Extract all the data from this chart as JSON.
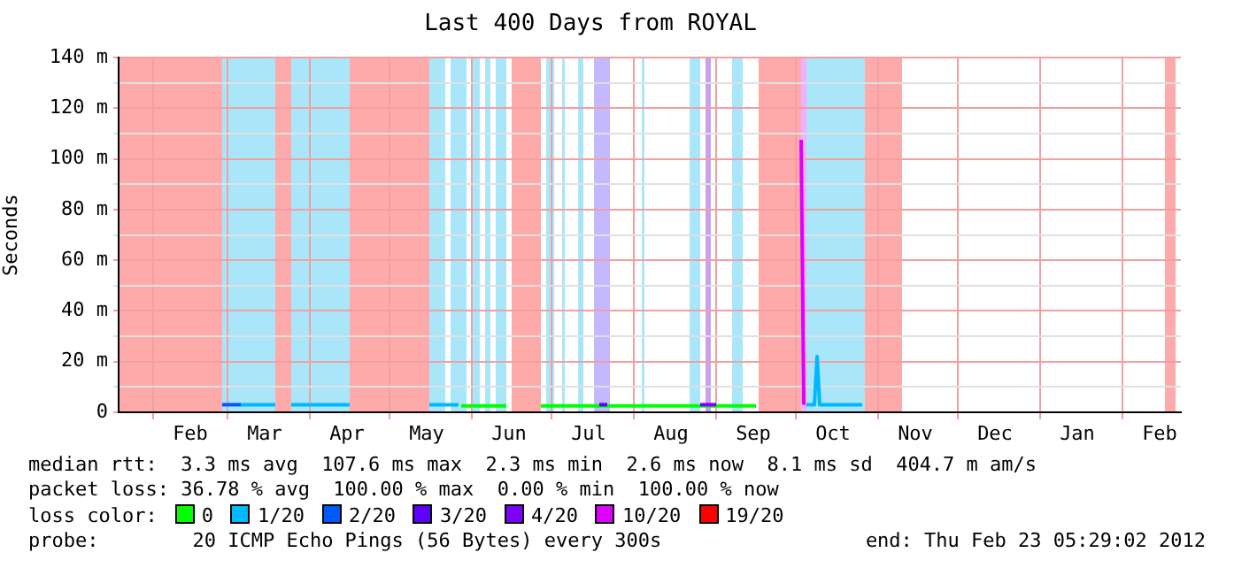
{
  "chart_data": {
    "type": "line",
    "title": "Last 400 Days from ROYAL",
    "ylabel": "Seconds",
    "legend_title": "loss color:",
    "legend": "bottom",
    "grid": true,
    "marker": "none",
    "line_style": "solid",
    "xlim": [
      "2011-01-19",
      "2012-02-23"
    ],
    "xticks": [
      {
        "value": "2011-02-01",
        "label": null
      },
      {
        "value": "2011-02-15",
        "label": "Feb"
      },
      {
        "value": "2011-03-01",
        "label": null
      },
      {
        "value": "2011-03-15",
        "label": "Mar"
      },
      {
        "value": "2011-04-01",
        "label": null
      },
      {
        "value": "2011-04-15",
        "label": "Apr"
      },
      {
        "value": "2011-05-01",
        "label": null
      },
      {
        "value": "2011-05-15",
        "label": "May"
      },
      {
        "value": "2011-06-01",
        "label": null
      },
      {
        "value": "2011-06-15",
        "label": "Jun"
      },
      {
        "value": "2011-07-01",
        "label": null
      },
      {
        "value": "2011-07-15",
        "label": "Jul"
      },
      {
        "value": "2011-08-01",
        "label": null
      },
      {
        "value": "2011-08-15",
        "label": "Aug"
      },
      {
        "value": "2011-09-01",
        "label": null
      },
      {
        "value": "2011-09-15",
        "label": "Sep"
      },
      {
        "value": "2011-10-01",
        "label": null
      },
      {
        "value": "2011-10-15",
        "label": "Oct"
      },
      {
        "value": "2011-11-01",
        "label": null
      },
      {
        "value": "2011-11-15",
        "label": "Nov"
      },
      {
        "value": "2011-12-01",
        "label": null
      },
      {
        "value": "2011-12-15",
        "label": "Dec"
      },
      {
        "value": "2012-01-01",
        "label": null
      },
      {
        "value": "2012-01-15",
        "label": "Jan"
      },
      {
        "value": "2012-02-01",
        "label": null
      },
      {
        "value": "2012-02-15",
        "label": "Feb"
      }
    ],
    "ylim": [
      0,
      140
    ],
    "yticks": [
      {
        "value": 0,
        "label": "0"
      },
      {
        "value": 10,
        "label": null
      },
      {
        "value": 20,
        "label": "20 m"
      },
      {
        "value": 30,
        "label": null
      },
      {
        "value": 40,
        "label": "40 m"
      },
      {
        "value": 50,
        "label": null
      },
      {
        "value": 60,
        "label": "60 m"
      },
      {
        "value": 70,
        "label": null
      },
      {
        "value": 80,
        "label": "80 m"
      },
      {
        "value": 90,
        "label": null
      },
      {
        "value": 100,
        "label": "100 m"
      },
      {
        "value": 110,
        "label": null
      },
      {
        "value": 120,
        "label": "120 m"
      },
      {
        "value": 130,
        "label": null
      },
      {
        "value": 140,
        "label": "140 m"
      }
    ],
    "series": [
      {
        "name": "0",
        "color": "#00ff00",
        "x": [
          "2011-05-28",
          "2011-06-14",
          "2011-06-15",
          "2011-06-27",
          "2011-07-15",
          "2011-08-10",
          "2011-09-16"
        ],
        "values": [
          2.5,
          2.5,
          null,
          2.5,
          2.5,
          2.5,
          2.5
        ]
      },
      {
        "name": "1/20",
        "color": "#00b8ff",
        "x": [
          "2011-03-06",
          "2011-03-19",
          "2011-03-20",
          "2011-03-25",
          "2011-04-16",
          "2011-04-17",
          "2011-05-16",
          "2011-05-27",
          "2011-05-28",
          "2011-10-05",
          "2011-10-08",
          "2011-10-09",
          "2011-10-10",
          "2011-10-26"
        ],
        "values": [
          3,
          3,
          null,
          3,
          3,
          null,
          3,
          3,
          null,
          3,
          3,
          22,
          3,
          3
        ]
      },
      {
        "name": "2/20",
        "color": "#0059ff",
        "x": [
          "2011-02-27",
          "2011-03-06"
        ],
        "values": [
          3,
          3
        ]
      },
      {
        "name": "3/20",
        "color": "#5e00ff",
        "x": [
          "2011-07-19",
          "2011-07-22"
        ],
        "values": [
          3,
          3
        ]
      },
      {
        "name": "4/20",
        "color": "#7e00ff",
        "x": [
          "2011-08-26",
          "2011-09-01"
        ],
        "values": [
          3,
          3
        ]
      },
      {
        "name": "10/20",
        "color": "#dd00ff",
        "x": [
          "2011-10-03",
          "2011-10-04"
        ],
        "values": [
          107.6,
          3
        ]
      },
      {
        "name": "19/20",
        "color": "#ff0000"
      }
    ],
    "bands": [
      {
        "axis": "x",
        "from": "2011-01-19",
        "to": "2011-02-27",
        "color": "#ffaaaa"
      },
      {
        "axis": "x",
        "from": "2011-02-27",
        "to": "2011-03-19",
        "color": "#aae6fa"
      },
      {
        "axis": "x",
        "from": "2011-03-19",
        "to": "2011-03-25",
        "color": "#ffaaaa"
      },
      {
        "axis": "x",
        "from": "2011-03-25",
        "to": "2011-04-16",
        "color": "#aae6fa"
      },
      {
        "axis": "x",
        "from": "2011-04-16",
        "to": "2011-05-16",
        "color": "#ffaaaa"
      },
      {
        "axis": "x",
        "from": "2011-05-16",
        "to": "2011-05-22",
        "color": "#aae6fa"
      },
      {
        "axis": "x",
        "from": "2011-05-24",
        "to": "2011-05-30",
        "color": "#aae6fa"
      },
      {
        "axis": "x",
        "from": "2011-06-01",
        "to": "2011-06-04",
        "color": "#aae6fa"
      },
      {
        "axis": "x",
        "from": "2011-06-06",
        "to": "2011-06-08",
        "color": "#aae6fa"
      },
      {
        "axis": "x",
        "from": "2011-06-10",
        "to": "2011-06-14",
        "color": "#aae6fa"
      },
      {
        "axis": "x",
        "from": "2011-06-16",
        "to": "2011-06-27",
        "color": "#ffaaaa"
      },
      {
        "axis": "x",
        "from": "2011-06-29",
        "to": "2011-07-02",
        "color": "#aae6fa"
      },
      {
        "axis": "x",
        "from": "2011-07-05",
        "to": "2011-07-06",
        "color": "#aae6fa"
      },
      {
        "axis": "x",
        "from": "2011-07-11",
        "to": "2011-07-13",
        "color": "#aae6fa"
      },
      {
        "axis": "x",
        "from": "2011-07-17",
        "to": "2011-07-23",
        "color": "#c4b8ff"
      },
      {
        "axis": "x",
        "from": "2011-08-04",
        "to": "2011-08-05",
        "color": "#aae6fa"
      },
      {
        "axis": "x",
        "from": "2011-08-22",
        "to": "2011-08-26",
        "color": "#aae6fa"
      },
      {
        "axis": "x",
        "from": "2011-08-28",
        "to": "2011-08-30",
        "color": "#c8a0f0"
      },
      {
        "axis": "x",
        "from": "2011-09-07",
        "to": "2011-09-11",
        "color": "#aae6fa"
      },
      {
        "axis": "x",
        "from": "2011-09-17",
        "to": "2011-10-03",
        "color": "#ffaaaa"
      },
      {
        "axis": "x",
        "from": "2011-10-03",
        "to": "2011-10-05",
        "color": "#f0b0ff"
      },
      {
        "axis": "x",
        "from": "2011-10-05",
        "to": "2011-10-27",
        "color": "#aae6fa"
      },
      {
        "axis": "x",
        "from": "2011-10-27",
        "to": "2011-11-10",
        "color": "#ffaaaa"
      },
      {
        "axis": "x",
        "from": "2012-02-17",
        "to": "2012-02-21",
        "color": "#ffaaaa"
      }
    ],
    "annotations": [
      "median rtt:  3.3 ms avg  107.6 ms max  2.3 ms min  2.6 ms now  8.1 ms sd  404.7 m am/s",
      "packet loss: 36.78 % avg  100.00 % max  0.00 % min  100.00 % now",
      "probe:        20 ICMP Echo Pings (56 Bytes) every 300s",
      "end: Thu Feb 23 05:29:02 2012"
    ]
  }
}
